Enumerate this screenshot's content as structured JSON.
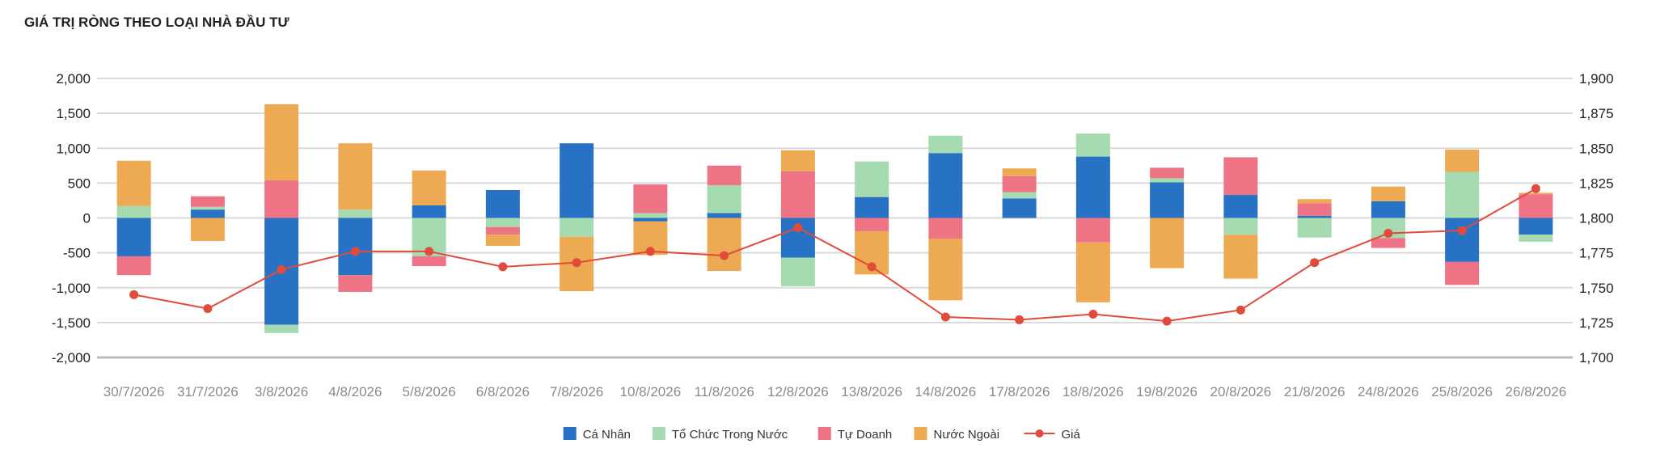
{
  "chart_data": {
    "type": "bar",
    "stacked": true,
    "title": "GIÁ TRỊ RÒNG THEO LOẠI NHÀ ĐẦU TƯ",
    "xlabel": "",
    "ylabel": "",
    "ylim": [
      -2000,
      2000
    ],
    "y_ticks": [
      2000,
      1500,
      1000,
      500,
      0,
      -500,
      -1000,
      -1500,
      -2000
    ],
    "y_tick_labels": [
      "2,000",
      "1,500",
      "1,000",
      "500",
      "0",
      "-500",
      "-1,000",
      "-1,500",
      "-2,000"
    ],
    "y2lim": [
      1700,
      1900
    ],
    "y2_ticks": [
      1900,
      1875,
      1850,
      1825,
      1800,
      1775,
      1750,
      1725,
      1700
    ],
    "y2_tick_labels": [
      "1,900",
      "1,875",
      "1,850",
      "1,825",
      "1,800",
      "1,775",
      "1,750",
      "1,725",
      "1,700"
    ],
    "grid": true,
    "legend_position": "bottom",
    "categories": [
      "30/7/2026",
      "31/7/2026",
      "3/8/2026",
      "4/8/2026",
      "5/8/2026",
      "6/8/2026",
      "7/8/2026",
      "10/8/2026",
      "11/8/2026",
      "12/8/2026",
      "13/8/2026",
      "14/8/2026",
      "17/8/2026",
      "18/8/2026",
      "19/8/2026",
      "20/8/2026",
      "21/8/2026",
      "24/8/2026",
      "25/8/2026",
      "26/8/2026"
    ],
    "series": [
      {
        "name": "Cá Nhân",
        "color": "#2872c6",
        "values": [
          -550,
          120,
          -1530,
          -820,
          180,
          400,
          1070,
          -50,
          70,
          -570,
          300,
          930,
          280,
          880,
          510,
          330,
          30,
          240,
          -630,
          -240
        ]
      },
      {
        "name": "Tổ Chức Trong Nước",
        "color": "#a6dab0",
        "values": [
          170,
          40,
          -120,
          120,
          -550,
          -130,
          -270,
          70,
          400,
          -410,
          510,
          250,
          90,
          330,
          60,
          -240,
          -280,
          -290,
          660,
          -100
        ]
      },
      {
        "name": "Tự Doanh",
        "color": "#ee7385",
        "values": [
          -270,
          150,
          540,
          -240,
          -140,
          -110,
          0,
          410,
          280,
          670,
          -190,
          -300,
          230,
          -350,
          150,
          540,
          180,
          -140,
          -330,
          340
        ]
      },
      {
        "name": "Nước Ngoài",
        "color": "#edaa52",
        "values": [
          650,
          -330,
          1090,
          950,
          500,
          -160,
          -780,
          -480,
          -760,
          300,
          -620,
          -880,
          110,
          -860,
          -720,
          -630,
          60,
          210,
          320,
          20
        ]
      }
    ],
    "line_series": {
      "name": "Giá",
      "color": "#e04b3b",
      "axis": "right",
      "values": [
        1745,
        1735,
        1763,
        1776,
        1776,
        1765,
        1768,
        1776,
        1773,
        1793,
        1765,
        1729,
        1727,
        1731,
        1726,
        1734,
        1768,
        1789,
        1791,
        1821
      ]
    }
  }
}
